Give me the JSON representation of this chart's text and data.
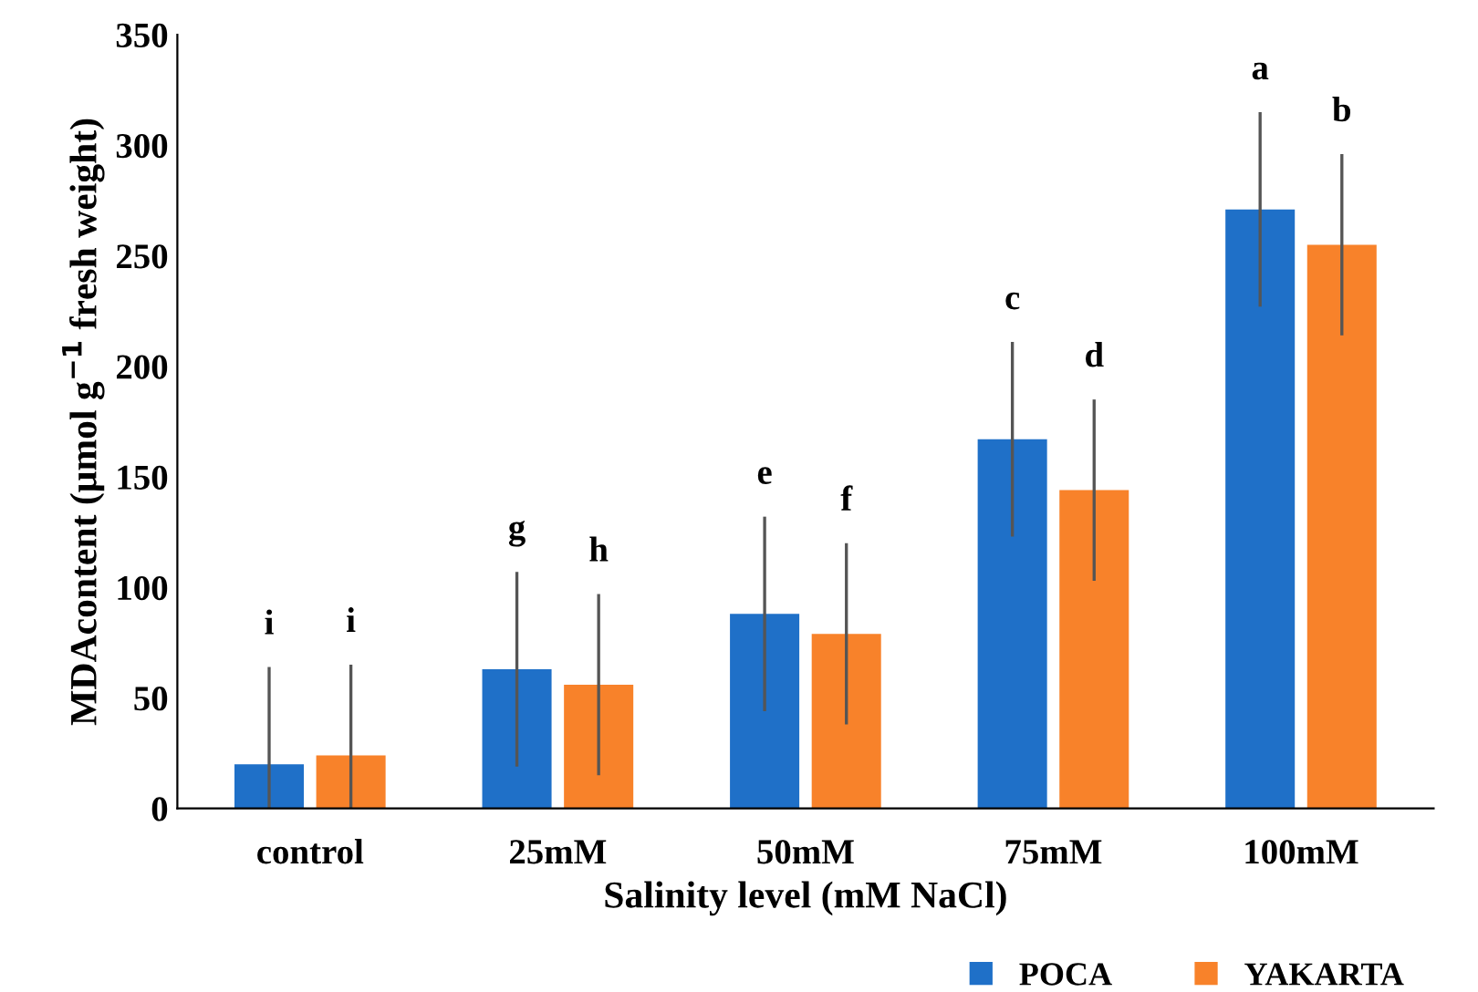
{
  "chart_data": {
    "type": "bar",
    "xlabel": "Salinity level (mM NaCl)",
    "ylabel": "MDAcontent (μmol g$^{−1}$ fresh weight)",
    "categories": [
      "control",
      "25mM",
      "50mM",
      "75mM",
      "100mM"
    ],
    "series": [
      {
        "name": "POCA",
        "color": "#1f70c8",
        "values": [
          20,
          63,
          88,
          167,
          271
        ],
        "errors": [
          44,
          44,
          44,
          44,
          44
        ]
      },
      {
        "name": "YAKARTA",
        "color": "#f8822a",
        "values": [
          24,
          56,
          79,
          144,
          255
        ],
        "errors": [
          41,
          41,
          41,
          41,
          41
        ]
      }
    ],
    "ylim": [
      0,
      350
    ],
    "yticks": [
      0,
      50,
      100,
      150,
      200,
      250,
      300,
      350
    ],
    "grid": false,
    "legend": "bottom right",
    "annotations": [
      "i",
      "i",
      "g",
      "h",
      "e",
      "f",
      "c",
      "d",
      "a",
      "b"
    ]
  }
}
